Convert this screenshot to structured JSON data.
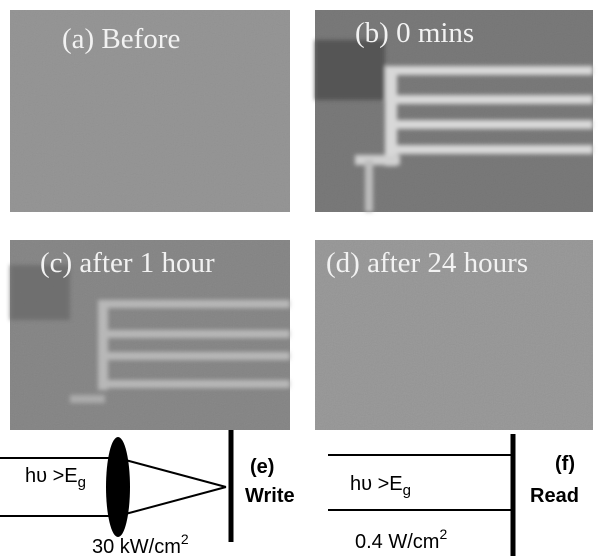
{
  "panels": [
    {
      "label": "(a) Before"
    },
    {
      "label": "(b) 0 mins"
    },
    {
      "label": "(c) after 1 hour"
    },
    {
      "label": "(d) after 24 hours"
    }
  ],
  "write_diagram": {
    "beam_main": "hυ >E",
    "beam_sub": "g",
    "tag": "(e)",
    "mode": "Write",
    "intensity": "30 kW/cm",
    "intensity_sup": "2"
  },
  "read_diagram": {
    "beam_main": "hυ >E",
    "beam_sub": "g",
    "tag": "(f)",
    "mode": "Read",
    "intensity": "0.4 W/cm",
    "intensity_sup": "2"
  }
}
